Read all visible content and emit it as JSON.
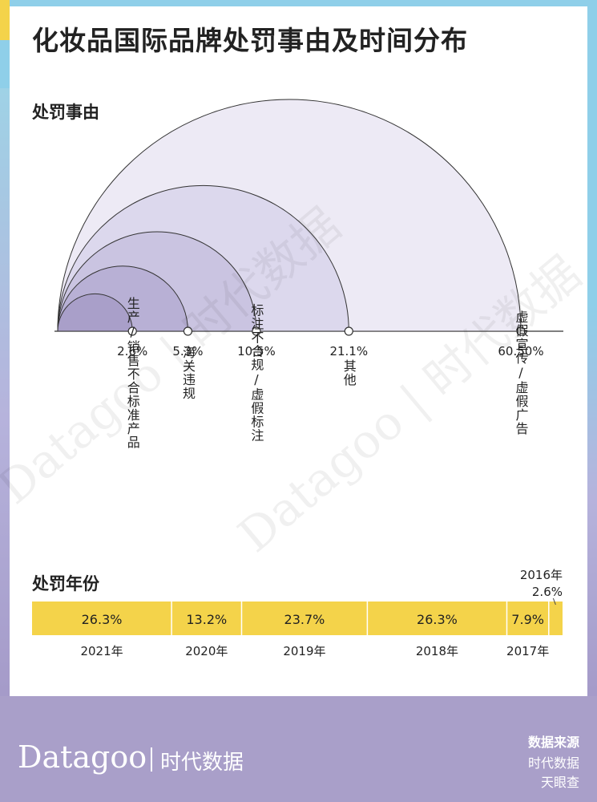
{
  "title": "化妆品国际品牌处罚事由及时间分布",
  "sections": {
    "reasons": "处罚事由",
    "years": "处罚年份"
  },
  "chart_data": [
    {
      "type": "semicircle",
      "title": "处罚事由",
      "items": [
        {
          "label": "生产/销售不合标准产品",
          "value": 2.6,
          "value_text": "2.6%",
          "color": "#a99fc9"
        },
        {
          "label": "海关违规",
          "value": 5.3,
          "value_text": "5.3%",
          "color": "#b8b0d5"
        },
        {
          "label": "标注不合规/虚假标注",
          "value": 10.5,
          "value_text": "10.5%",
          "color": "#cac4e1"
        },
        {
          "label": "其他",
          "value": 21.1,
          "value_text": "21.1%",
          "color": "#dcd8ed"
        },
        {
          "label": "虚假宣传/虚假广告",
          "value": 60.5,
          "value_text": "60.50%",
          "color": "#edeaf5"
        }
      ]
    },
    {
      "type": "stacked_bar",
      "title": "处罚年份",
      "segments": [
        {
          "year": "2021年",
          "value": 26.3,
          "value_text": "26.3%"
        },
        {
          "year": "2020年",
          "value": 13.2,
          "value_text": "13.2%"
        },
        {
          "year": "2019年",
          "value": 23.7,
          "value_text": "23.7%"
        },
        {
          "year": "2018年",
          "value": 26.3,
          "value_text": "26.3%"
        },
        {
          "year": "2017年",
          "value": 7.9,
          "value_text": "7.9%"
        },
        {
          "year": "2016年",
          "value": 2.6,
          "value_text": "2.6%"
        }
      ],
      "bar_color": "#f4d34a"
    }
  ],
  "footer": {
    "logo": "Datagoo",
    "logo_cn": "时代数据",
    "source_title": "数据来源",
    "sources": [
      "时代数据",
      "天眼查"
    ]
  },
  "watermark": "Datagoo | 时代数据"
}
